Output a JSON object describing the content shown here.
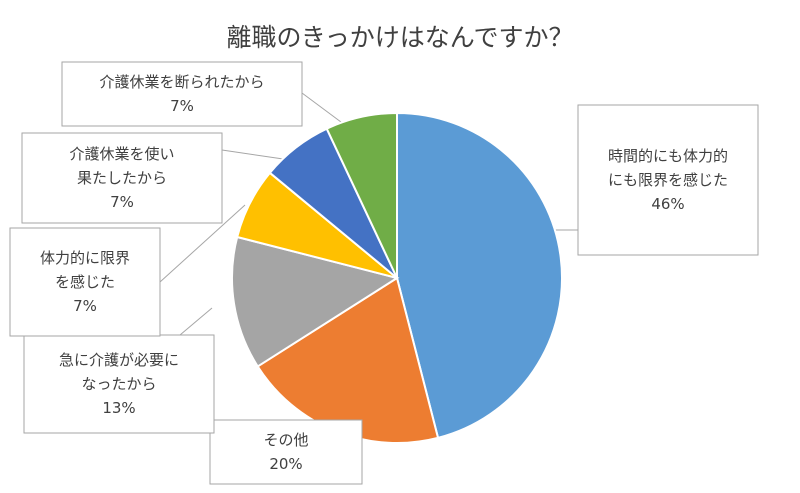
{
  "chart_data": {
    "type": "pie",
    "title": "離職のきっかけはなんですか？",
    "slices": [
      {
        "lines": [
          "時間的にも体力的",
          "にも限界を感じた"
        ],
        "pct_label": "46%",
        "value": 46,
        "color": "#5B9BD5"
      },
      {
        "lines": [
          "その他"
        ],
        "pct_label": "20%",
        "value": 20,
        "color": "#ED7D31"
      },
      {
        "lines": [
          "急に介護が必要に",
          "なったから"
        ],
        "pct_label": "13%",
        "value": 13,
        "color": "#A5A5A5"
      },
      {
        "lines": [
          "体力的に限界",
          "を感じた"
        ],
        "pct_label": "7%",
        "value": 7,
        "color": "#FFC000"
      },
      {
        "lines": [
          "介護休業を使い",
          "果たしたから"
        ],
        "pct_label": "7%",
        "value": 7,
        "color": "#4472C4"
      },
      {
        "lines": [
          "介護休業を断られたから"
        ],
        "pct_label": "7%",
        "value": 7,
        "color": "#70AD47"
      }
    ]
  }
}
